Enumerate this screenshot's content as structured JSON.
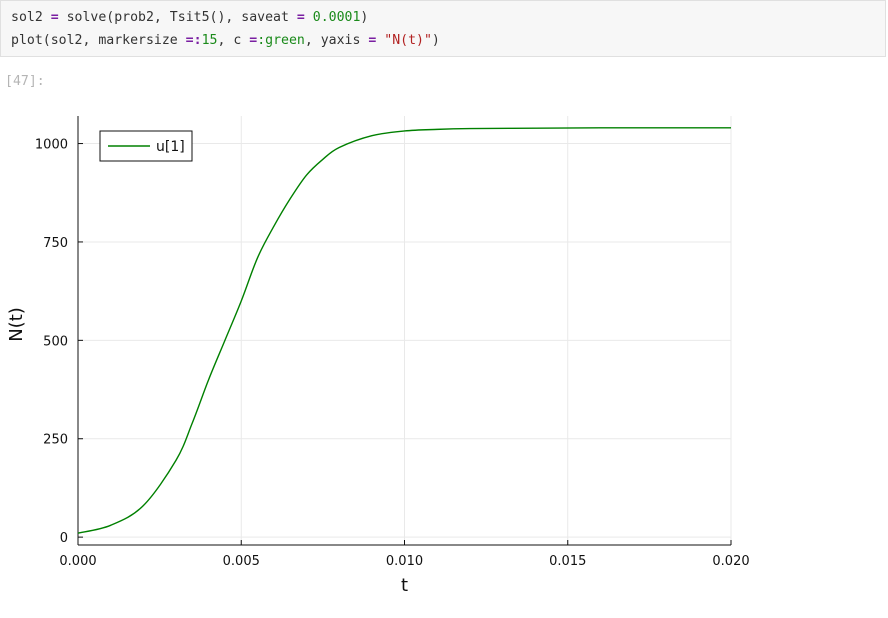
{
  "code_cell": {
    "line1": {
      "var": "sol2 ",
      "op": "=",
      "call": " solve(prob2, Tsit5(), saveat ",
      "op2": "=",
      "space": " ",
      "num": "0.0001",
      "close": ")"
    },
    "line2": {
      "call": "plot(sol2, markersize ",
      "op": "=",
      "colon": ":",
      "num": "15",
      "mid": ", c ",
      "op2": "=",
      "sym": ":green",
      "mid2": ", yaxis ",
      "op3": "=",
      "space": " ",
      "str": "\"N(t)\"",
      "close": ")"
    }
  },
  "output": {
    "prompt": "[47]:"
  },
  "chart_data": {
    "type": "line",
    "xlabel": "t",
    "ylabel": "N(t)",
    "xlim": [
      0,
      0.02
    ],
    "ylim": [
      -20,
      1070
    ],
    "x_ticks": [
      0.0,
      0.005,
      0.01,
      0.015,
      0.02
    ],
    "x_tick_labels": [
      "0.000",
      "0.005",
      "0.010",
      "0.015",
      "0.020"
    ],
    "y_ticks": [
      0,
      250,
      500,
      750,
      1000
    ],
    "y_tick_labels": [
      "0",
      "250",
      "500",
      "750",
      "1000"
    ],
    "grid": true,
    "legend_position": "top-left",
    "line_color": "#008000",
    "series": [
      {
        "name": "u[1]",
        "x": [
          0.0,
          0.001,
          0.002,
          0.003,
          0.0035,
          0.004,
          0.0045,
          0.005,
          0.0055,
          0.006,
          0.0065,
          0.007,
          0.0075,
          0.008,
          0.009,
          0.01,
          0.011,
          0.012,
          0.014,
          0.016,
          0.018,
          0.02
        ],
        "values": [
          10,
          30,
          80,
          195,
          290,
          400,
          500,
          600,
          710,
          790,
          860,
          920,
          960,
          990,
          1020,
          1032,
          1036,
          1038,
          1039,
          1040,
          1040,
          1040
        ]
      }
    ]
  }
}
